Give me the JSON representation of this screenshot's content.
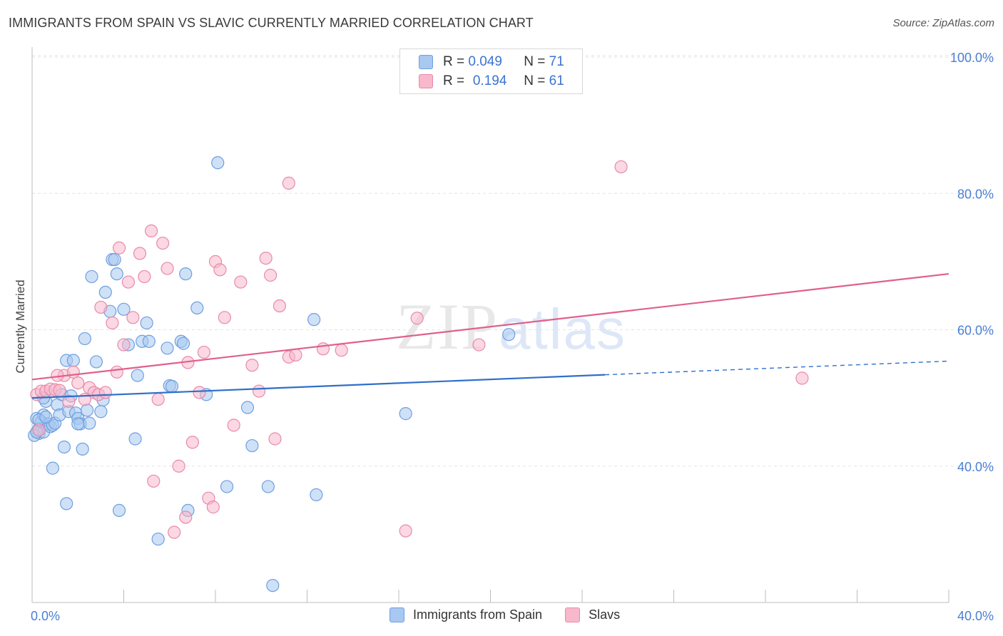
{
  "header": {
    "title": "IMMIGRANTS FROM SPAIN VS SLAVIC CURRENTLY MARRIED CORRELATION CHART",
    "source": "Source: ZipAtlas.com"
  },
  "legend": {
    "rows": [
      {
        "r_label": "R =",
        "r_value": "0.049",
        "n_label": "N =",
        "n_value": "71",
        "color": "#a8c8f0"
      },
      {
        "r_label": "R =",
        "r_value": "0.194",
        "n_label": "N =",
        "n_value": "61",
        "color": "#f7b8cc"
      }
    ]
  },
  "bottom_legend": [
    {
      "label": "Immigrants from Spain",
      "color": "#a8c8f0"
    },
    {
      "label": "Slavs",
      "color": "#f7b8cc"
    }
  ],
  "watermark": {
    "zip": "ZIP",
    "atlas": "atlas"
  },
  "colors": {
    "blue_fill": "#a8c8f0",
    "blue_stroke": "#6e9fe0",
    "blue_line": "#2f6fc9",
    "pink_fill": "#f7b8cc",
    "pink_stroke": "#e88aa8",
    "pink_line": "#e0608a",
    "tick_text": "#4a7fd4",
    "grid": "#e3e3e3"
  },
  "chart_data": {
    "type": "scatter",
    "title": "IMMIGRANTS FROM SPAIN VS SLAVIC CURRENTLY MARRIED CORRELATION CHART",
    "xlabel": "",
    "ylabel": "Currently Married",
    "xlim": [
      0,
      40
    ],
    "ylim": [
      20,
      100
    ],
    "x_ticks_labeled": [
      "0.0%",
      "40.0%"
    ],
    "y_ticks": [
      40,
      60,
      80,
      100
    ],
    "y_tick_labels": [
      "40.0%",
      "60.0%",
      "80.0%",
      "100.0%"
    ],
    "grid": true,
    "legend_position": "top-center",
    "series": [
      {
        "name": "Immigrants from Spain",
        "R": 0.049,
        "N": 71,
        "trend": {
          "x0": 0.0,
          "y0": 50.0,
          "x1": 25.0,
          "y1": 53.4,
          "dashed_to_x": 40.0,
          "dashed_to_y": 55.4
        },
        "points": [
          [
            0.2,
            47.0
          ],
          [
            0.3,
            45.5
          ],
          [
            0.3,
            44.8
          ],
          [
            0.4,
            46.5
          ],
          [
            0.5,
            45.0
          ],
          [
            0.5,
            47.5
          ],
          [
            0.6,
            49.5
          ],
          [
            0.7,
            46.2
          ],
          [
            0.8,
            45.8
          ],
          [
            0.9,
            46.0
          ],
          [
            1.0,
            46.3
          ],
          [
            1.1,
            49.0
          ],
          [
            1.2,
            47.5
          ],
          [
            1.3,
            50.5
          ],
          [
            1.4,
            42.8
          ],
          [
            1.5,
            55.5
          ],
          [
            1.6,
            48.0
          ],
          [
            1.7,
            50.3
          ],
          [
            1.8,
            55.5
          ],
          [
            1.9,
            47.8
          ],
          [
            2.0,
            47.0
          ],
          [
            2.1,
            46.2
          ],
          [
            2.2,
            42.5
          ],
          [
            2.3,
            58.7
          ],
          [
            2.4,
            48.2
          ],
          [
            2.5,
            46.3
          ],
          [
            2.6,
            67.8
          ],
          [
            2.8,
            55.3
          ],
          [
            3.0,
            48.0
          ],
          [
            3.1,
            49.7
          ],
          [
            3.2,
            65.5
          ],
          [
            3.4,
            62.7
          ],
          [
            3.5,
            70.3
          ],
          [
            3.6,
            70.3
          ],
          [
            3.7,
            68.2
          ],
          [
            3.8,
            33.5
          ],
          [
            4.0,
            63.0
          ],
          [
            4.2,
            57.8
          ],
          [
            4.5,
            44.0
          ],
          [
            4.6,
            53.3
          ],
          [
            4.8,
            58.3
          ],
          [
            5.0,
            61.0
          ],
          [
            5.1,
            58.3
          ],
          [
            5.5,
            29.3
          ],
          [
            5.9,
            57.3
          ],
          [
            6.0,
            51.8
          ],
          [
            6.1,
            51.7
          ],
          [
            6.5,
            58.3
          ],
          [
            6.6,
            58.0
          ],
          [
            6.7,
            68.2
          ],
          [
            6.8,
            33.5
          ],
          [
            7.2,
            63.2
          ],
          [
            7.6,
            50.5
          ],
          [
            8.1,
            84.5
          ],
          [
            8.5,
            37.0
          ],
          [
            9.4,
            48.6
          ],
          [
            9.6,
            43.0
          ],
          [
            10.3,
            37.0
          ],
          [
            10.5,
            22.5
          ],
          [
            12.3,
            61.5
          ],
          [
            12.4,
            35.8
          ],
          [
            16.3,
            47.7
          ],
          [
            20.8,
            59.3
          ],
          [
            0.1,
            44.5
          ],
          [
            0.2,
            45.0
          ],
          [
            0.3,
            46.8
          ],
          [
            0.9,
            39.7
          ],
          [
            1.5,
            34.5
          ],
          [
            0.5,
            50.0
          ],
          [
            0.6,
            47.2
          ],
          [
            2.0,
            46.2
          ]
        ]
      },
      {
        "name": "Slavs",
        "R": 0.194,
        "N": 61,
        "trend": {
          "x0": 0.0,
          "y0": 52.7,
          "x1": 40.0,
          "y1": 68.2
        },
        "points": [
          [
            0.2,
            50.5
          ],
          [
            0.4,
            51.0
          ],
          [
            0.6,
            51.0
          ],
          [
            0.8,
            51.3
          ],
          [
            1.0,
            51.2
          ],
          [
            1.2,
            51.1
          ],
          [
            1.4,
            53.3
          ],
          [
            1.6,
            49.5
          ],
          [
            1.8,
            53.8
          ],
          [
            2.0,
            52.2
          ],
          [
            2.3,
            49.8
          ],
          [
            2.5,
            51.5
          ],
          [
            2.7,
            50.8
          ],
          [
            2.9,
            50.5
          ],
          [
            3.0,
            63.3
          ],
          [
            3.2,
            50.8
          ],
          [
            3.5,
            61.0
          ],
          [
            3.7,
            53.8
          ],
          [
            3.8,
            72.0
          ],
          [
            4.0,
            57.8
          ],
          [
            4.2,
            67.0
          ],
          [
            4.4,
            61.8
          ],
          [
            4.7,
            71.2
          ],
          [
            4.9,
            67.8
          ],
          [
            5.2,
            74.5
          ],
          [
            5.3,
            37.8
          ],
          [
            5.5,
            49.8
          ],
          [
            5.7,
            72.7
          ],
          [
            5.9,
            69.0
          ],
          [
            6.2,
            30.3
          ],
          [
            6.7,
            32.5
          ],
          [
            6.8,
            55.2
          ],
          [
            7.0,
            43.5
          ],
          [
            7.3,
            50.8
          ],
          [
            7.5,
            56.7
          ],
          [
            7.7,
            35.3
          ],
          [
            8.0,
            70.0
          ],
          [
            8.2,
            68.8
          ],
          [
            8.4,
            61.8
          ],
          [
            8.8,
            46.0
          ],
          [
            9.1,
            67.0
          ],
          [
            9.6,
            54.8
          ],
          [
            9.9,
            51.0
          ],
          [
            10.2,
            70.5
          ],
          [
            10.4,
            68.0
          ],
          [
            10.6,
            44.0
          ],
          [
            10.8,
            63.5
          ],
          [
            11.2,
            56.0
          ],
          [
            11.5,
            56.3
          ],
          [
            12.7,
            57.2
          ],
          [
            13.5,
            57.0
          ],
          [
            16.3,
            30.5
          ],
          [
            16.8,
            61.7
          ],
          [
            19.5,
            57.8
          ],
          [
            25.7,
            83.9
          ],
          [
            33.6,
            52.9
          ],
          [
            0.3,
            45.3
          ],
          [
            1.1,
            53.3
          ],
          [
            6.4,
            40.0
          ],
          [
            7.9,
            34.0
          ],
          [
            11.2,
            81.5
          ]
        ]
      }
    ]
  }
}
